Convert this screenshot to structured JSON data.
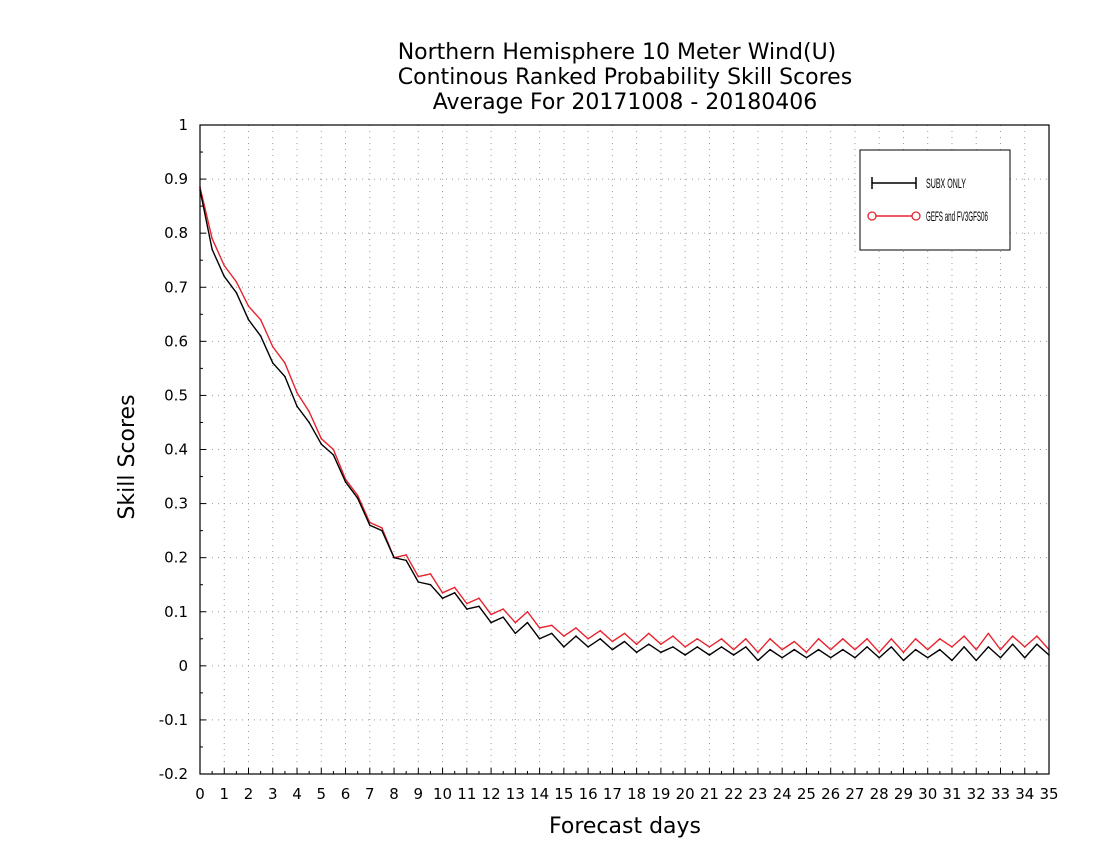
{
  "chart_data": {
    "type": "line",
    "title": "Northern Hemisphere 10 Meter Wind(U)",
    "subtitle": "Continous Ranked Probability Skill Scores",
    "subtitle2": "Average For 20171008 - 20180406",
    "xlabel": "Forecast days",
    "ylabel": "Skill Scores",
    "xlim": [
      0,
      35
    ],
    "ylim": [
      -0.2,
      1
    ],
    "grid": true,
    "legend_position": "top-right",
    "x_ticks": [
      "0",
      "1",
      "2",
      "3",
      "4",
      "5",
      "6",
      "7",
      "8",
      "9",
      "10",
      "11",
      "12",
      "13",
      "14",
      "15",
      "16",
      "17",
      "18",
      "19",
      "20",
      "21",
      "22",
      "23",
      "24",
      "25",
      "26",
      "27",
      "28",
      "29",
      "30",
      "31",
      "32",
      "33",
      "34",
      "35"
    ],
    "y_ticks": [
      "-0.2",
      "-0.1",
      "0",
      "0.1",
      "0.2",
      "0.3",
      "0.4",
      "0.5",
      "0.6",
      "0.7",
      "0.8",
      "0.9",
      "1"
    ],
    "x": [
      0,
      0.5,
      1,
      1.5,
      2,
      2.5,
      3,
      3.5,
      4,
      4.5,
      5,
      5.5,
      6,
      6.5,
      7,
      7.5,
      8,
      8.5,
      9,
      9.5,
      10,
      10.5,
      11,
      11.5,
      12,
      12.5,
      13,
      13.5,
      14,
      14.5,
      15,
      15.5,
      16,
      16.5,
      17,
      17.5,
      18,
      18.5,
      19,
      19.5,
      20,
      20.5,
      21,
      21.5,
      22,
      22.5,
      23,
      23.5,
      24,
      24.5,
      25,
      25.5,
      26,
      26.5,
      27,
      27.5,
      28,
      28.5,
      29,
      29.5,
      30,
      30.5,
      31,
      31.5,
      32,
      32.5,
      33,
      33.5,
      34,
      34.5,
      35
    ],
    "series": [
      {
        "name": "SUBX ONLY",
        "color": "#000000",
        "marker": "plus",
        "values": [
          0.88,
          0.77,
          0.72,
          0.69,
          0.64,
          0.61,
          0.56,
          0.535,
          0.48,
          0.45,
          0.41,
          0.39,
          0.34,
          0.31,
          0.26,
          0.25,
          0.2,
          0.195,
          0.155,
          0.15,
          0.125,
          0.135,
          0.105,
          0.11,
          0.08,
          0.09,
          0.06,
          0.08,
          0.05,
          0.06,
          0.035,
          0.055,
          0.035,
          0.05,
          0.03,
          0.045,
          0.025,
          0.04,
          0.025,
          0.035,
          0.02,
          0.035,
          0.02,
          0.035,
          0.02,
          0.035,
          0.01,
          0.03,
          0.015,
          0.03,
          0.015,
          0.03,
          0.015,
          0.03,
          0.015,
          0.035,
          0.015,
          0.035,
          0.01,
          0.03,
          0.015,
          0.03,
          0.01,
          0.035,
          0.01,
          0.035,
          0.015,
          0.04,
          0.015,
          0.04,
          0.02
        ]
      },
      {
        "name": "GEFS and FV3GFS06",
        "color": "#e8232c",
        "marker": "circle",
        "values": [
          0.885,
          0.79,
          0.74,
          0.71,
          0.665,
          0.64,
          0.59,
          0.56,
          0.505,
          0.47,
          0.42,
          0.4,
          0.345,
          0.315,
          0.265,
          0.255,
          0.2,
          0.205,
          0.165,
          0.17,
          0.135,
          0.145,
          0.115,
          0.125,
          0.095,
          0.105,
          0.08,
          0.1,
          0.07,
          0.075,
          0.055,
          0.07,
          0.05,
          0.065,
          0.045,
          0.06,
          0.04,
          0.06,
          0.04,
          0.055,
          0.035,
          0.05,
          0.035,
          0.05,
          0.03,
          0.05,
          0.025,
          0.05,
          0.03,
          0.045,
          0.025,
          0.05,
          0.03,
          0.05,
          0.03,
          0.05,
          0.025,
          0.05,
          0.025,
          0.05,
          0.03,
          0.05,
          0.035,
          0.055,
          0.03,
          0.06,
          0.03,
          0.055,
          0.035,
          0.055,
          0.03
        ]
      }
    ]
  }
}
